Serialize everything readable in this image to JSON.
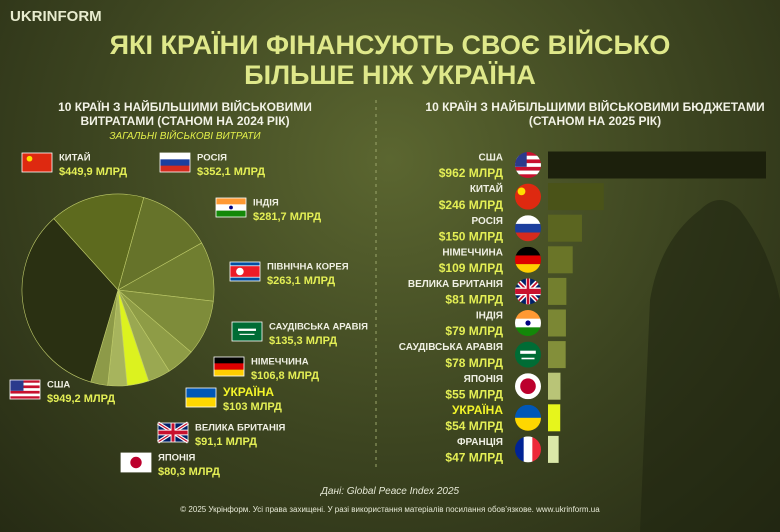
{
  "header": {
    "logo": "UKRINFORM",
    "title": "ЯКІ КРАЇНИ ФІНАНСУЮТЬ СВОЄ ВІЙСЬКО БІЛЬШЕ НІЖ УКРАЇНА"
  },
  "chart_data": [
    {
      "type": "pie",
      "title": "10 КРАЇН З НАЙБІЛЬШИМИ ВІЙСЬКОВИМИ ВИТРАТАМИ (СТАНОМ НА 2024 РІК)",
      "subtitle": "ЗАГАЛЬНІ ВІЙСЬКОВІ ВИТРАТИ",
      "categories": [
        "КИТАЙ",
        "РОСІЯ",
        "ІНДІЯ",
        "ПІВНІЧНА КОРЕЯ",
        "САУДІВСЬКА АРАВІЯ",
        "НІМЕЧЧИНА",
        "УКРАЇНА",
        "ВЕЛИКА БРИТАНІЯ",
        "ЯПОНІЯ",
        "США"
      ],
      "values": [
        449.9,
        352.1,
        281.7,
        263.1,
        135.3,
        106.8,
        103,
        91.1,
        80.3,
        949.2
      ],
      "value_labels": [
        "$449,9 МЛРД",
        "$352,1 МЛРД",
        "$281,7 МЛРД",
        "$263,1 МЛРД",
        "$135,3 МЛРД",
        "$106,8 МЛРД",
        "$103 МЛРД",
        "$91,1 МЛРД",
        "$80,3 МЛРД",
        "$949,2 МЛРД"
      ],
      "colors": [
        "#5d6a1e",
        "#66732a",
        "#707e30",
        "#7e8c3a",
        "#8e9c46",
        "#9aa851",
        "#dcf21f",
        "#a7b45d",
        "#8d9a48",
        "#2a3012"
      ]
    },
    {
      "type": "bar",
      "orientation": "horizontal",
      "title": "10 КРАЇН З НАЙБІЛЬШИМИ ВІЙСЬКОВИМИ БЮДЖЕТАМИ (СТАНОМ НА 2025 РІК)",
      "categories": [
        "США",
        "КИТАЙ",
        "РОСІЯ",
        "НІМЕЧЧИНА",
        "ВЕЛИКА БРИТАНІЯ",
        "ІНДІЯ",
        "САУДІВСЬКА АРАВІЯ",
        "ЯПОНІЯ",
        "УКРАЇНА",
        "ФРАНЦІЯ"
      ],
      "values": [
        962,
        246,
        150,
        109,
        81,
        79,
        78,
        55,
        54,
        47
      ],
      "value_labels": [
        "$962 МЛРД",
        "$246 МЛРД",
        "$150 МЛРД",
        "$109 МЛРД",
        "$81 МЛРД",
        "$79 МЛРД",
        "$78 МЛРД",
        "$55 МЛРД",
        "$54 МЛРД",
        "$47 МЛРД"
      ],
      "colors": [
        "#1c200c",
        "#4a5318",
        "#5b6520",
        "#6a7528",
        "#737f2e",
        "#7b8734",
        "#838f3a",
        "#b9c477",
        "#e6f51c",
        "#dbe8a8"
      ]
    }
  ],
  "footer": {
    "source": "Дані: Global Peace Index 2025",
    "copyright": "© 2025 Укрінформ. Усі права захищені. У разі використання матеріалів посилання обов’язкове. www.ukrinform.ua"
  }
}
